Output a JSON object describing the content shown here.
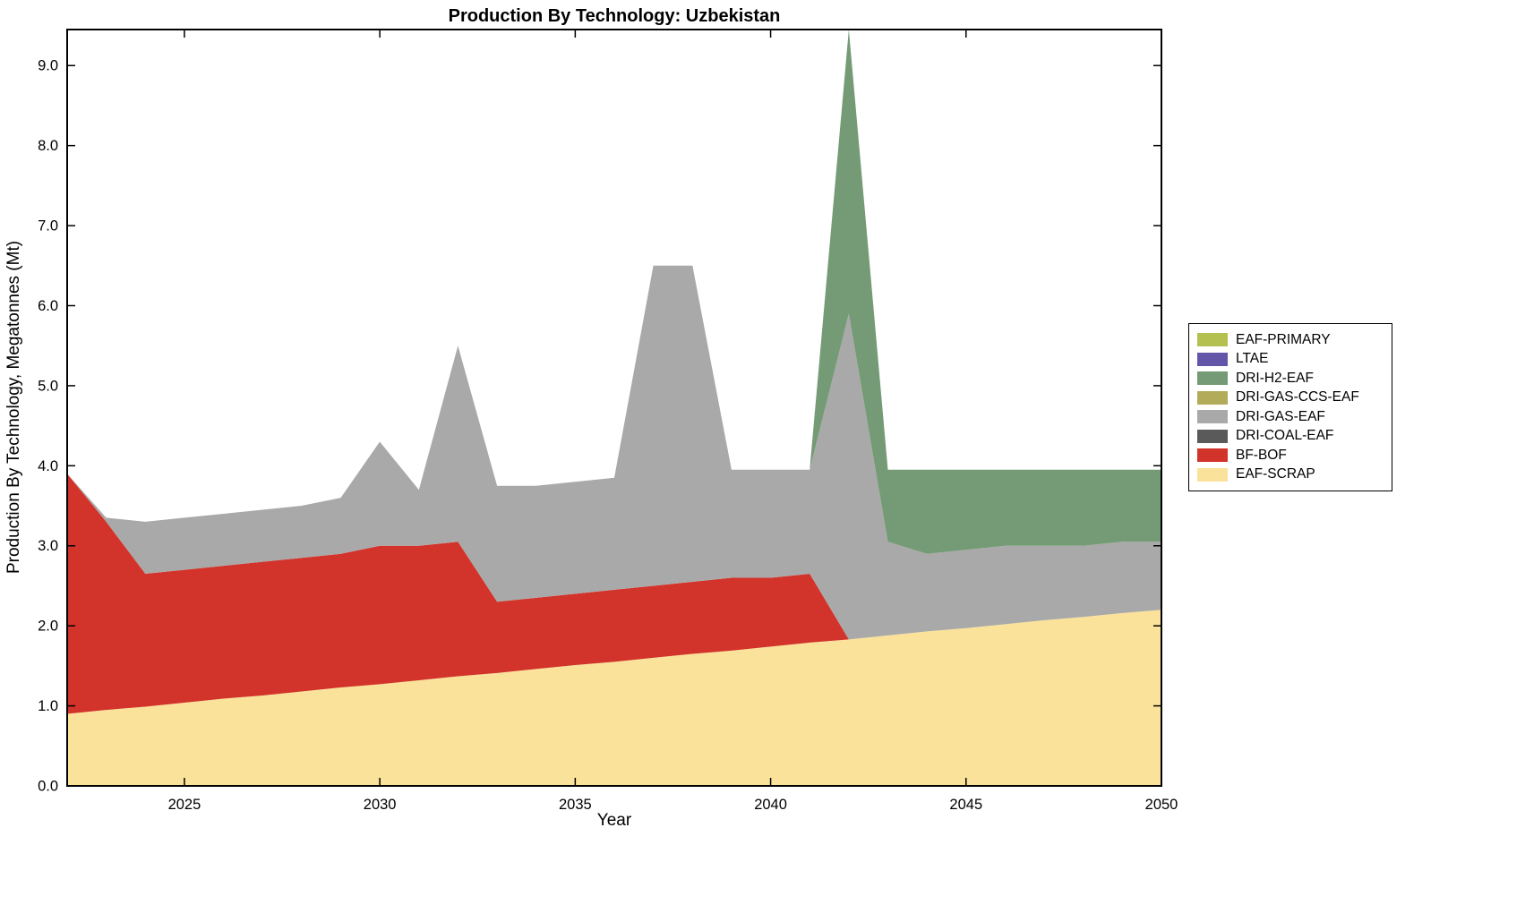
{
  "figure": {
    "title": "Production By Technology: Uzbekistan",
    "xlabel": "Year",
    "ylabel": "Production By Technology, Megatonnes (Mt)"
  },
  "chart_data": {
    "type": "area",
    "stacked": true,
    "title": "Production By Technology: Uzbekistan",
    "xlabel": "Year",
    "ylabel": "Production By Technology, Megatonnes (Mt)",
    "grid": false,
    "legend_position": "right-outside",
    "xlim": [
      2022,
      2050
    ],
    "ylim": [
      0,
      9.45
    ],
    "xticks": [
      2025,
      2030,
      2035,
      2040,
      2045,
      2050
    ],
    "yticks": [
      {
        "value": 0,
        "label": "0.0"
      },
      {
        "value": 1,
        "label": "1.0"
      },
      {
        "value": 2,
        "label": "2.0"
      },
      {
        "value": 3,
        "label": "3.0"
      },
      {
        "value": 4,
        "label": "4.0"
      },
      {
        "value": 5,
        "label": "5.0"
      },
      {
        "value": 6,
        "label": "6.0"
      },
      {
        "value": 7,
        "label": "7.0"
      },
      {
        "value": 8,
        "label": "8.0"
      },
      {
        "value": 9,
        "label": "9.0"
      }
    ],
    "x": [
      2022,
      2023,
      2024,
      2025,
      2026,
      2027,
      2028,
      2029,
      2030,
      2031,
      2032,
      2033,
      2034,
      2035,
      2036,
      2037,
      2038,
      2039,
      2040,
      2041,
      2042,
      2043,
      2044,
      2045,
      2046,
      2047,
      2048,
      2049,
      2050
    ],
    "series": [
      {
        "name": "EAF-SCRAP",
        "color": "#fae29b",
        "values": [
          0.9,
          0.95,
          0.99,
          1.04,
          1.09,
          1.13,
          1.18,
          1.23,
          1.27,
          1.32,
          1.37,
          1.41,
          1.46,
          1.51,
          1.55,
          1.6,
          1.65,
          1.69,
          1.74,
          1.79,
          1.83,
          1.88,
          1.93,
          1.97,
          2.02,
          2.07,
          2.11,
          2.16,
          2.2
        ]
      },
      {
        "name": "BF-BOF",
        "color": "#d2332a",
        "values": [
          3.0,
          2.35,
          1.66,
          1.66,
          1.66,
          1.67,
          1.67,
          1.67,
          1.73,
          1.68,
          1.68,
          0.89,
          0.89,
          0.89,
          0.9,
          0.9,
          0.9,
          0.91,
          0.86,
          0.86,
          0,
          0,
          0,
          0,
          0,
          0,
          0,
          0,
          0
        ]
      },
      {
        "name": "DRI-COAL-EAF",
        "color": "#5a5a5a",
        "values": [
          0,
          0,
          0,
          0,
          0,
          0,
          0,
          0,
          0,
          0,
          0,
          0,
          0,
          0,
          0,
          0,
          0,
          0,
          0,
          0,
          0,
          0,
          0,
          0,
          0,
          0,
          0,
          0,
          0
        ]
      },
      {
        "name": "DRI-GAS-EAF",
        "color": "#a9a9a9",
        "values": [
          0,
          0.05,
          0.65,
          0.65,
          0.65,
          0.65,
          0.65,
          0.7,
          1.3,
          0.7,
          2.45,
          1.45,
          1.4,
          1.4,
          1.4,
          4.0,
          3.95,
          1.35,
          1.35,
          1.3,
          4.07,
          1.17,
          0.97,
          0.98,
          0.98,
          0.93,
          0.89,
          0.89,
          0.85
        ]
      },
      {
        "name": "DRI-GAS-CCS-EAF",
        "color": "#b2ab59",
        "values": [
          0,
          0,
          0,
          0,
          0,
          0,
          0,
          0,
          0,
          0,
          0,
          0,
          0,
          0,
          0,
          0,
          0,
          0,
          0,
          0,
          0,
          0,
          0,
          0,
          0,
          0,
          0,
          0,
          0
        ]
      },
      {
        "name": "DRI-H2-EAF",
        "color": "#749b75",
        "values": [
          0,
          0,
          0,
          0,
          0,
          0,
          0,
          0,
          0,
          0,
          0,
          0,
          0,
          0,
          0,
          0,
          0,
          0,
          0,
          0,
          3.55,
          0.9,
          1.05,
          1.0,
          0.95,
          0.95,
          0.95,
          0.9,
          0.9
        ]
      },
      {
        "name": "LTAE",
        "color": "#6356a8",
        "values": [
          0,
          0,
          0,
          0,
          0,
          0,
          0,
          0,
          0,
          0,
          0,
          0,
          0,
          0,
          0,
          0,
          0,
          0,
          0,
          0,
          0,
          0,
          0,
          0,
          0,
          0,
          0,
          0,
          0
        ]
      },
      {
        "name": "EAF-PRIMARY",
        "color": "#b4c04f",
        "values": [
          0,
          0,
          0,
          0,
          0,
          0,
          0,
          0,
          0,
          0,
          0,
          0,
          0,
          0,
          0,
          0,
          0,
          0,
          0,
          0,
          0,
          0,
          0,
          0,
          0,
          0,
          0,
          0,
          0
        ]
      }
    ],
    "legend_order_top_to_bottom": [
      "EAF-PRIMARY",
      "LTAE",
      "DRI-H2-EAF",
      "DRI-GAS-CCS-EAF",
      "DRI-GAS-EAF",
      "DRI-COAL-EAF",
      "BF-BOF",
      "EAF-SCRAP"
    ]
  }
}
